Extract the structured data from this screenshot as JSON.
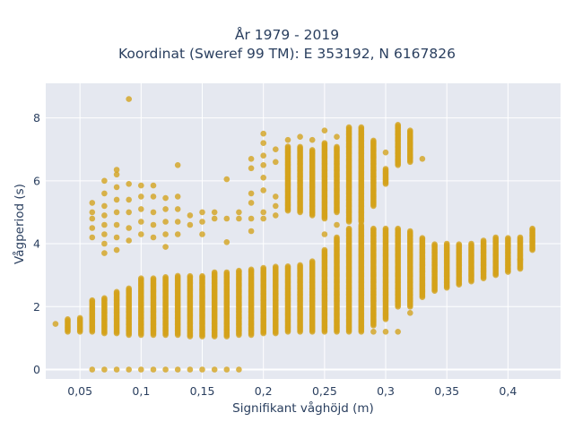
{
  "chart_data": {
    "type": "scatter",
    "title": "År 1979 - 2019",
    "subtitle": "Koordinat (Sweref 99 TM): E 353192, N 6167826",
    "xlabel": "Signifikant våghöjd (m)",
    "ylabel": "Vågperiod (s)",
    "xlim": [
      0.022,
      0.443
    ],
    "ylim": [
      -0.3,
      9.1
    ],
    "x_ticks": [
      0.05,
      0.1,
      0.15,
      0.2,
      0.25,
      0.3,
      0.35,
      0.4
    ],
    "x_tick_labels": [
      "0,05",
      "0,1",
      "0,15",
      "0,2",
      "0,25",
      "0,3",
      "0,35",
      "0,4"
    ],
    "y_ticks": [
      0,
      2,
      4,
      6,
      8
    ],
    "y_tick_labels": [
      "0",
      "2",
      "4",
      "6",
      "8"
    ],
    "grid": true,
    "marker_color": "#d4a21a",
    "plot_bg": "#e5e8f0",
    "series": [
      {
        "description_of_pattern": "dense vertical columns at each 0.01 m step of wave height",
        "columns": [
          {
            "x": 0.03,
            "y": [
              1.45
            ]
          },
          {
            "x": 0.04,
            "y_range": [
              1.2,
              1.6
            ]
          },
          {
            "x": 0.05,
            "y_range": [
              1.2,
              1.65
            ]
          },
          {
            "x": 0.06,
            "y_range": [
              1.2,
              2.2
            ],
            "extra": [
              0,
              4.2,
              4.5,
              4.8,
              5.0,
              5.3
            ]
          },
          {
            "x": 0.07,
            "y_range": [
              1.15,
              2.3
            ],
            "extra": [
              0,
              3.7,
              4.0,
              4.3,
              4.6,
              4.9,
              5.2,
              5.6,
              6.0
            ]
          },
          {
            "x": 0.08,
            "y_range": [
              1.15,
              2.5
            ],
            "extra": [
              0,
              3.8,
              4.2,
              4.6,
              5.0,
              5.4,
              5.8,
              6.2,
              6.35
            ]
          },
          {
            "x": 0.09,
            "y_range": [
              1.1,
              2.6
            ],
            "extra": [
              0,
              4.1,
              4.5,
              5.0,
              5.4,
              5.9,
              8.6
            ]
          },
          {
            "x": 0.1,
            "y_range": [
              1.1,
              2.9
            ],
            "extra": [
              0,
              4.3,
              4.7,
              5.1,
              5.5,
              5.85
            ]
          },
          {
            "x": 0.11,
            "y_range": [
              1.1,
              2.9
            ],
            "extra": [
              0,
              4.2,
              4.6,
              5.0,
              5.5,
              5.85
            ]
          },
          {
            "x": 0.12,
            "y_range": [
              1.1,
              2.95
            ],
            "extra": [
              0,
              3.9,
              4.3,
              4.7,
              5.1,
              5.45
            ]
          },
          {
            "x": 0.13,
            "y_range": [
              1.1,
              3.0
            ],
            "extra": [
              0,
              4.3,
              4.7,
              5.1,
              5.5,
              6.5
            ]
          },
          {
            "x": 0.14,
            "y_range": [
              1.05,
              3.0
            ],
            "extra": [
              0,
              4.6,
              4.9
            ]
          },
          {
            "x": 0.15,
            "y_range": [
              1.05,
              3.0
            ],
            "extra": [
              0,
              4.3,
              4.7,
              5.0
            ]
          },
          {
            "x": 0.16,
            "y_range": [
              1.05,
              3.1
            ],
            "extra": [
              0,
              4.8,
              5.0
            ]
          },
          {
            "x": 0.17,
            "y_range": [
              1.05,
              3.1
            ],
            "extra": [
              0,
              4.05,
              4.8,
              6.05
            ]
          },
          {
            "x": 0.18,
            "y_range": [
              1.1,
              3.15
            ],
            "extra": [
              0,
              4.8,
              5.0
            ]
          },
          {
            "x": 0.19,
            "y_range": [
              1.1,
              3.2
            ],
            "extra": [
              4.4,
              4.8,
              5.3,
              5.6,
              6.4,
              6.7
            ]
          },
          {
            "x": 0.2,
            "y_range": [
              1.15,
              3.25
            ],
            "extra": [
              4.8,
              5.0,
              5.7,
              6.1,
              6.5,
              6.8,
              7.2,
              7.5
            ]
          },
          {
            "x": 0.21,
            "y_range": [
              1.15,
              3.3
            ],
            "extra": [
              4.9,
              5.2,
              5.5,
              6.6,
              7.0
            ]
          },
          {
            "x": 0.22,
            "y_range": [
              1.2,
              3.3
            ],
            "upper_range": [
              5.05,
              7.1
            ],
            "extra": [
              7.3
            ]
          },
          {
            "x": 0.23,
            "y_range": [
              1.2,
              3.35
            ],
            "upper_range": [
              5.0,
              7.1
            ],
            "extra": [
              7.4
            ]
          },
          {
            "x": 0.24,
            "y_range": [
              1.2,
              3.45
            ],
            "upper_range": [
              4.9,
              7.0
            ],
            "extra": [
              7.3
            ]
          },
          {
            "x": 0.25,
            "y_range": [
              1.2,
              3.8
            ],
            "upper_range": [
              4.8,
              7.2
            ],
            "extra": [
              4.3,
              7.6
            ]
          },
          {
            "x": 0.26,
            "y_range": [
              1.2,
              4.2
            ],
            "upper_range": [
              5.0,
              7.1
            ],
            "extra": [
              4.6,
              7.4
            ]
          },
          {
            "x": 0.27,
            "y_range": [
              1.2,
              4.5
            ],
            "upper_range": [
              4.7,
              7.7
            ]
          },
          {
            "x": 0.28,
            "y_range": [
              1.2,
              4.6
            ],
            "upper_range": [
              4.7,
              7.7
            ]
          },
          {
            "x": 0.29,
            "y_range": [
              1.4,
              4.5
            ],
            "upper_range": [
              5.2,
              7.3
            ],
            "extra": [
              1.2
            ]
          },
          {
            "x": 0.3,
            "y_range": [
              1.6,
              4.5
            ],
            "upper_range": [
              5.9,
              6.4
            ],
            "extra": [
              1.2,
              6.9
            ]
          },
          {
            "x": 0.31,
            "y_range": [
              2.0,
              4.5
            ],
            "upper_range": [
              6.5,
              7.8
            ],
            "extra": [
              1.2
            ]
          },
          {
            "x": 0.32,
            "y_range": [
              2.0,
              4.4
            ],
            "upper_range": [
              6.6,
              7.6
            ],
            "extra": [
              1.8
            ]
          },
          {
            "x": 0.33,
            "y_range": [
              2.3,
              4.2
            ],
            "extra": [
              6.7
            ]
          },
          {
            "x": 0.34,
            "y_range": [
              2.5,
              4.0
            ]
          },
          {
            "x": 0.35,
            "y_range": [
              2.6,
              4.0
            ]
          },
          {
            "x": 0.36,
            "y_range": [
              2.7,
              4.0
            ]
          },
          {
            "x": 0.37,
            "y_range": [
              2.8,
              4.0
            ]
          },
          {
            "x": 0.38,
            "y_range": [
              2.9,
              4.1
            ]
          },
          {
            "x": 0.39,
            "y_range": [
              3.0,
              4.2
            ]
          },
          {
            "x": 0.4,
            "y_range": [
              3.1,
              4.2
            ]
          },
          {
            "x": 0.41,
            "y_range": [
              3.2,
              4.2
            ],
            "extra": [
              3.5
            ]
          },
          {
            "x": 0.42,
            "y_range": [
              3.8,
              4.5
            ]
          }
        ]
      }
    ]
  }
}
